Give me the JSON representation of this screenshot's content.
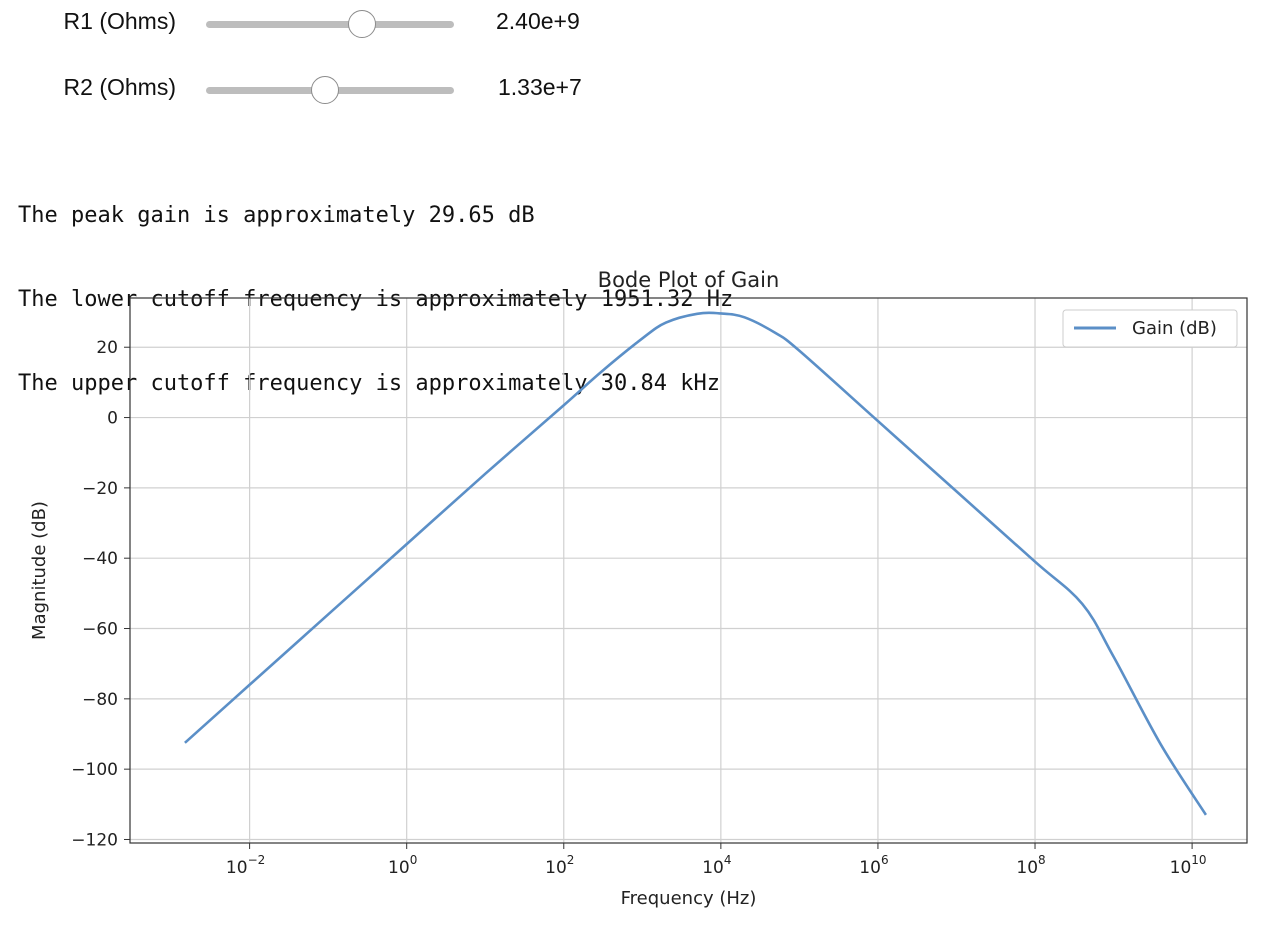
{
  "sliders": [
    {
      "label": "R1 (Ohms)",
      "value_text": "2.40e+9",
      "position": 0.63
    },
    {
      "label": "R2 (Ohms)",
      "value_text": "1.33e+7",
      "position": 0.48
    }
  ],
  "output_lines": [
    "The peak gain is approximately 29.65 dB",
    "The lower cutoff frequency is approximately 1951.32 Hz",
    "The upper cutoff frequency is approximately 30.84 kHz"
  ],
  "chart_data": {
    "type": "line",
    "title": "Bode Plot of Gain",
    "xlabel": "Frequency (Hz)",
    "ylabel": "Magnitude (dB)",
    "xscale": "log",
    "xlim": [
      0.0003,
      50000000000
    ],
    "ylim": [
      -121,
      34
    ],
    "grid": true,
    "legend_position": "top-right",
    "xticks": [
      0.01,
      1,
      100,
      10000,
      1000000,
      100000000,
      10000000000
    ],
    "xtick_labels": [
      {
        "base": "10",
        "exp": "−2"
      },
      {
        "base": "10",
        "exp": "0"
      },
      {
        "base": "10",
        "exp": "2"
      },
      {
        "base": "10",
        "exp": "4"
      },
      {
        "base": "10",
        "exp": "6"
      },
      {
        "base": "10",
        "exp": "8"
      },
      {
        "base": "10",
        "exp": "10"
      }
    ],
    "yticks": [
      20,
      0,
      -20,
      -40,
      -60,
      -80,
      -100,
      -120
    ],
    "ytick_labels": [
      "20",
      "0",
      "−20",
      "−40",
      "−60",
      "−80",
      "−100",
      "−120"
    ],
    "series": [
      {
        "name": "Gain (dB)",
        "color": "#5b8fc7",
        "x": [
          0.0015,
          0.01,
          0.1,
          1,
          10,
          100,
          300,
          1000,
          2000,
          5000,
          10000,
          20000,
          50000,
          100000,
          1000000,
          10000000,
          100000000,
          400000000,
          1000000000,
          4000000000,
          15000000000
        ],
        "y": [
          -92.5,
          -76,
          -56,
          -36,
          -16,
          3.5,
          13,
          22.5,
          27,
          29.5,
          29.6,
          28.5,
          24,
          19,
          -1,
          -21,
          -41,
          -53,
          -68,
          -93,
          -113
        ]
      }
    ]
  },
  "colors": {
    "slider_track": "#bdbdbd",
    "grid": "#d0d0d0",
    "axes": "#333333"
  }
}
